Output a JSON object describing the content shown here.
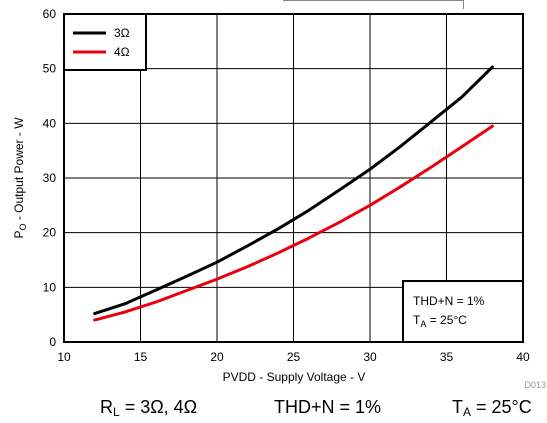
{
  "chart_data": {
    "type": "line",
    "xlabel": "PVDD - Supply Voltage - V",
    "ylabel_main": "P",
    "ylabel_sub": "O",
    "ylabel_rest": " - Output Power - W",
    "xlim": [
      10,
      40
    ],
    "ylim": [
      0,
      60
    ],
    "xticks": [
      "10",
      "15",
      "20",
      "25",
      "30",
      "35",
      "40"
    ],
    "yticks": [
      "0",
      "10",
      "20",
      "30",
      "40",
      "50",
      "60"
    ],
    "grid": true,
    "legend_position": "top-left",
    "series": [
      {
        "name": "3Ω",
        "color": "#000000",
        "x": [
          12,
          14,
          16,
          18,
          20,
          22,
          24,
          26,
          28,
          30,
          32,
          34,
          36,
          38
        ],
        "y": [
          5.2,
          7,
          9.5,
          12,
          14.6,
          17.6,
          20.7,
          24.1,
          27.8,
          31.6,
          35.8,
          40.3,
          44.8,
          50.3
        ]
      },
      {
        "name": "4Ω",
        "color": "#e8000d",
        "x": [
          12,
          14,
          16,
          18,
          20,
          22,
          24,
          26,
          28,
          30,
          32,
          34,
          36,
          38
        ],
        "y": [
          4,
          5.5,
          7.3,
          9.4,
          11.5,
          13.8,
          16.3,
          19,
          21.9,
          25,
          28.4,
          32,
          35.7,
          39.5
        ]
      }
    ],
    "annotation": {
      "line1": "THD+N = 1%",
      "line2_main": "T",
      "line2_sub": "A",
      "line2_rest": " = 25°C"
    },
    "figure_id": "D013"
  },
  "caption": {
    "rl_main": "R",
    "rl_sub": "L",
    "rl_rest": " = 3Ω, 4Ω",
    "thd": "THD+N = 1%",
    "ta_main": "T",
    "ta_sub": "A",
    "ta_rest": " = 25°C"
  }
}
